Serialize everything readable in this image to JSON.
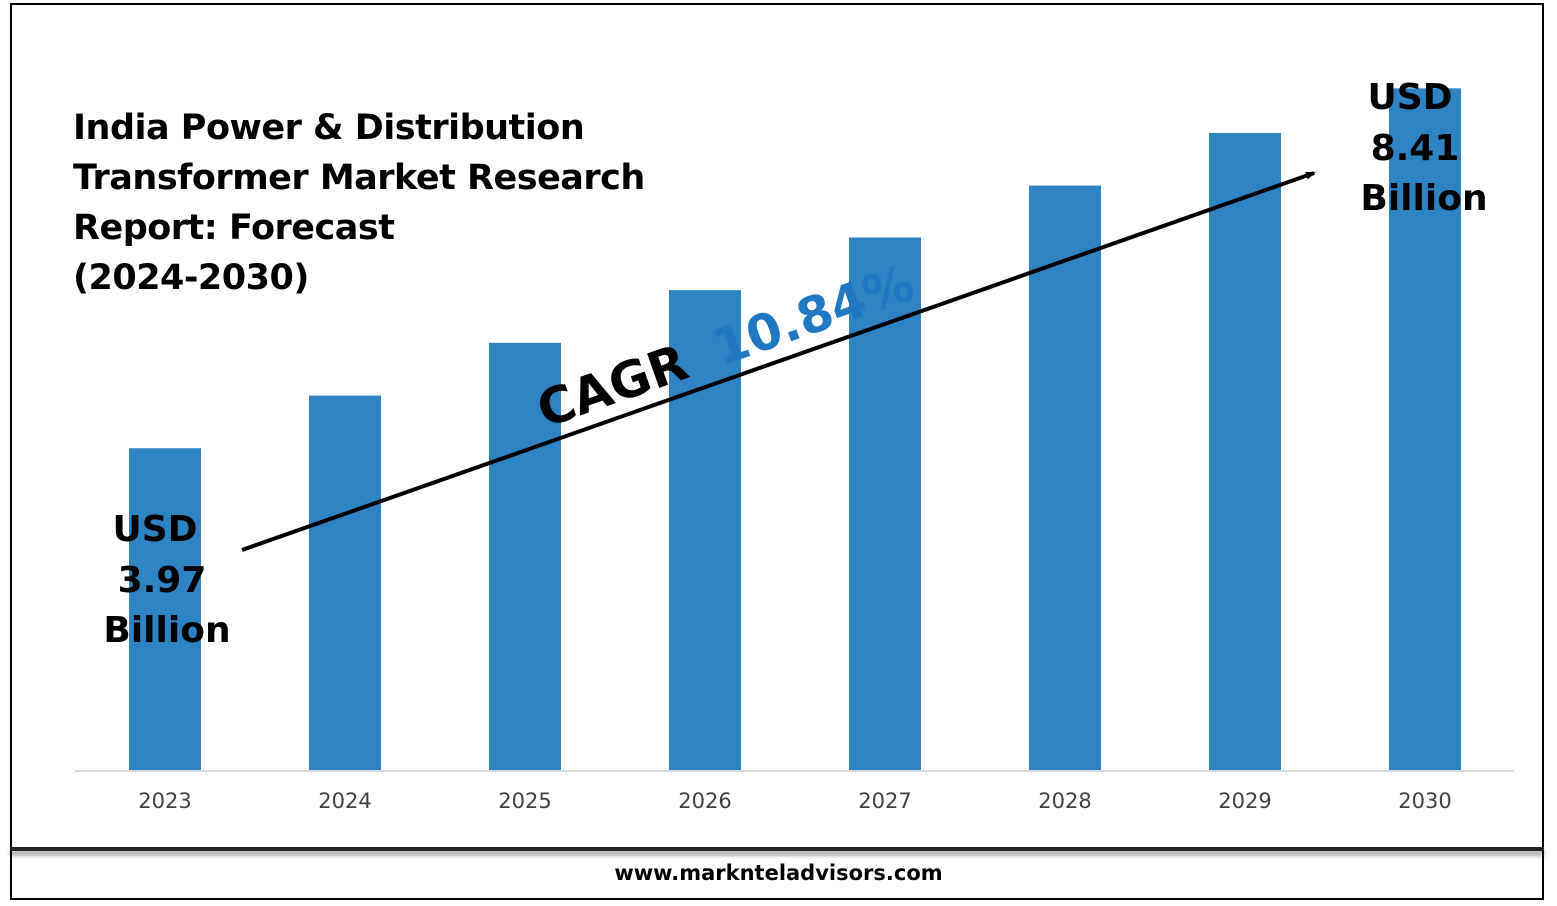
{
  "chart_data": {
    "type": "bar",
    "title": [
      "India Power & Distribution",
      "Transformer Market Research",
      "Report: Forecast",
      "(2024-2030)"
    ],
    "categories": [
      "2023",
      "2024",
      "2025",
      "2026",
      "2027",
      "2028",
      "2029",
      "2030"
    ],
    "values": [
      3.97,
      4.62,
      5.27,
      5.92,
      6.57,
      7.21,
      7.86,
      8.41
    ],
    "unit": "USD Billion",
    "ylim": [
      0,
      9.5
    ],
    "bar_color": "#2e83c3",
    "grid": false,
    "legend": "none",
    "annotations": {
      "start": [
        "USD",
        "3.97",
        "Billion"
      ],
      "end": [
        "USD",
        "8.41",
        "Billion"
      ],
      "cagr_label": "CAGR",
      "cagr_value": "10.84%",
      "cagr_color": "#1f78c1"
    }
  },
  "footer": {
    "url": "www.marknteladvisors.com"
  }
}
